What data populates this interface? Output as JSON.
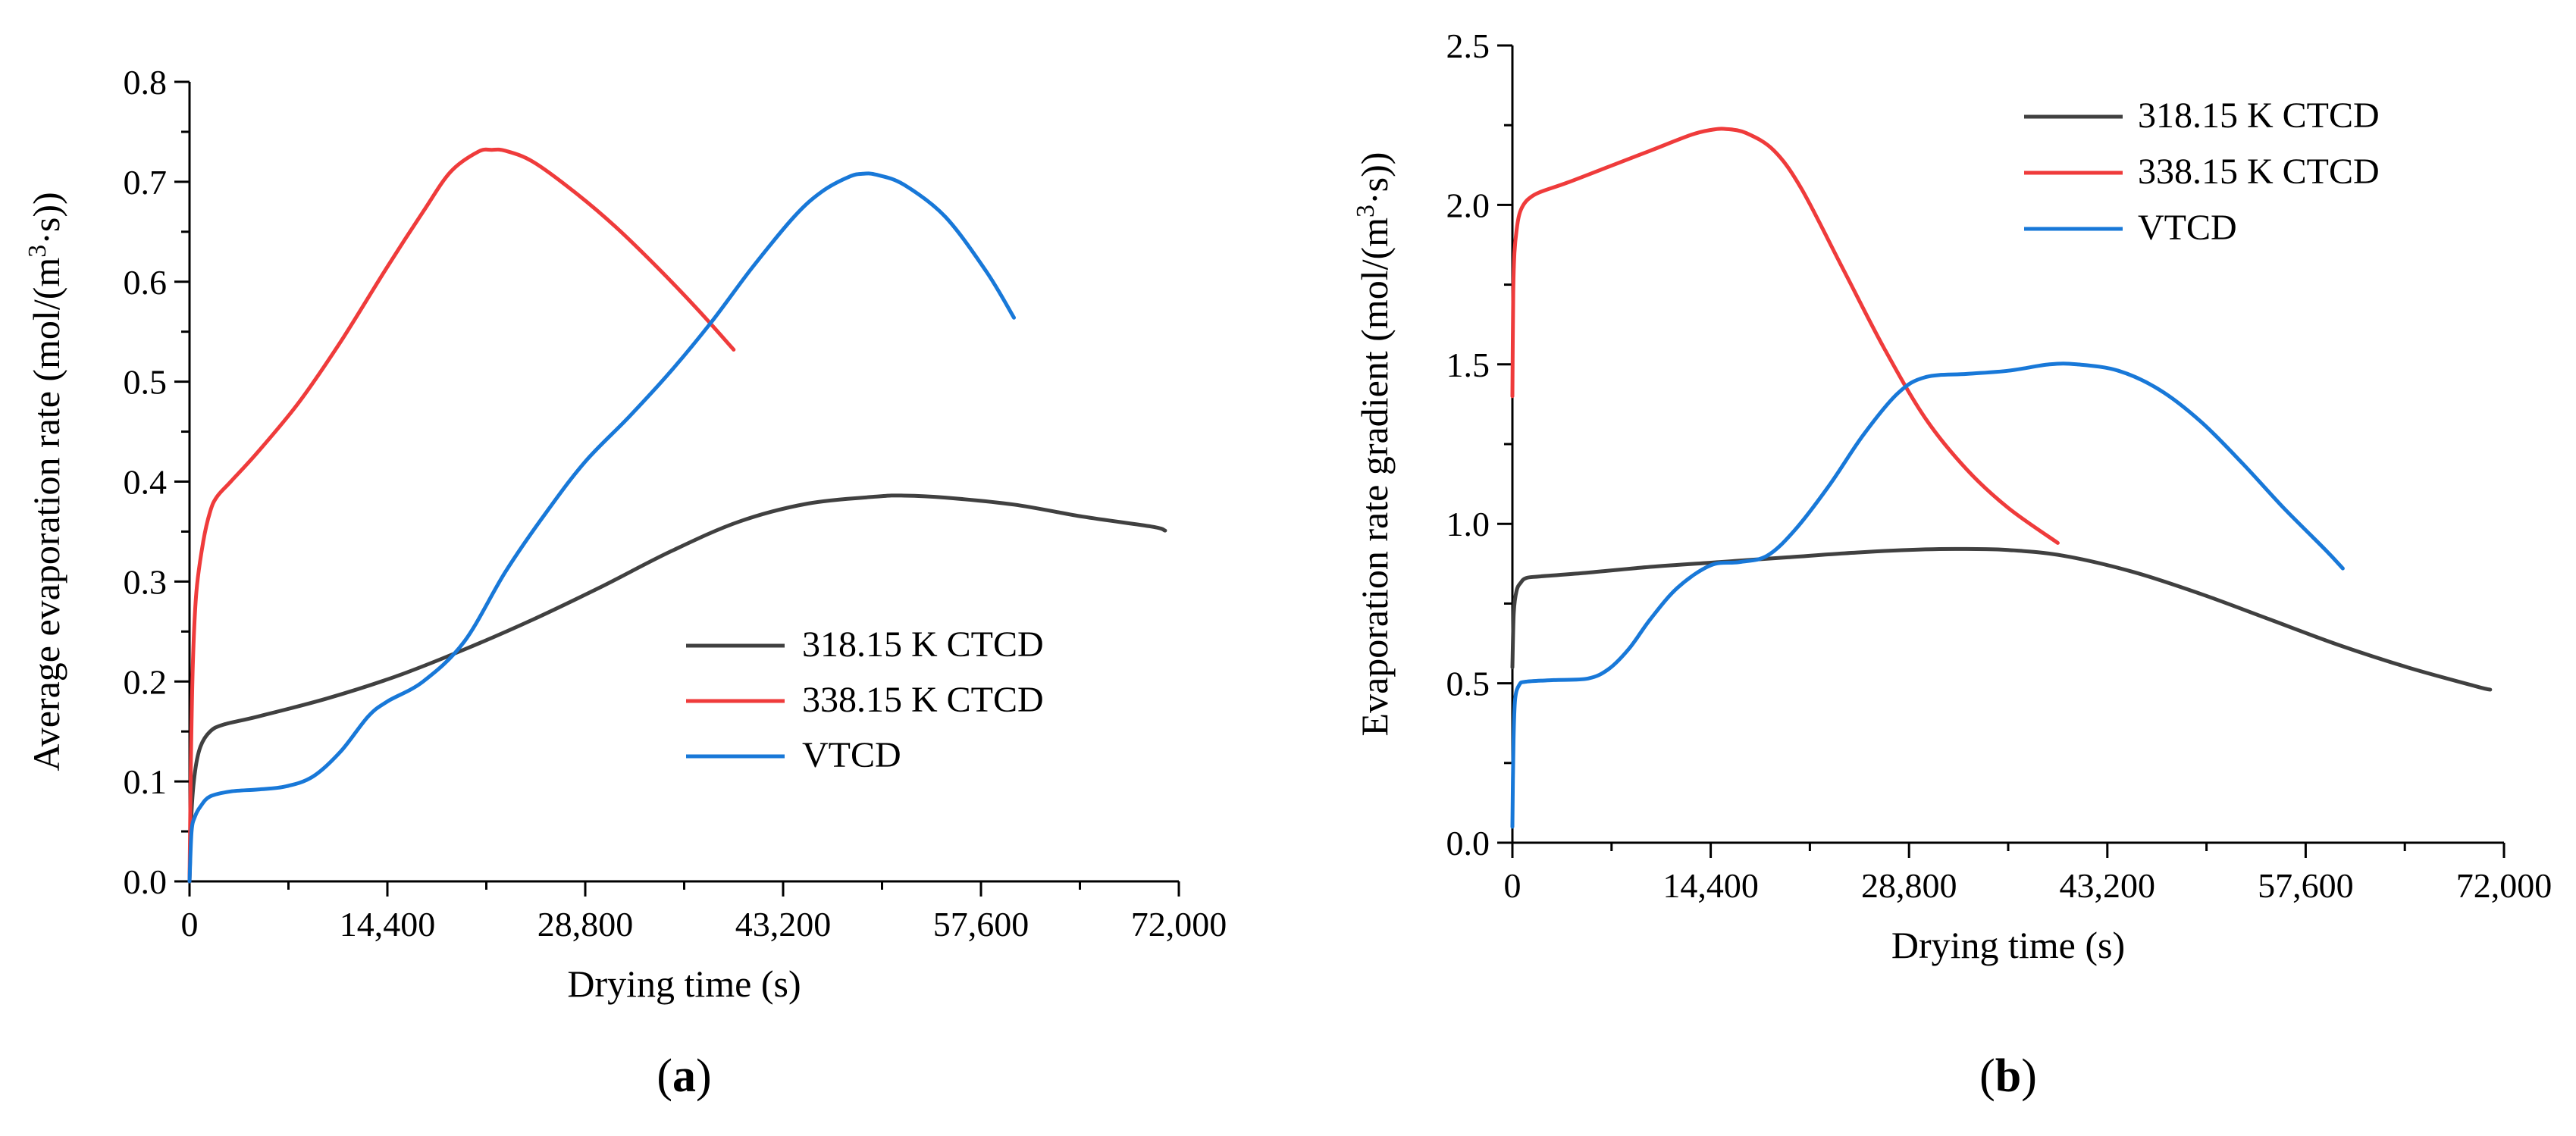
{
  "colors": {
    "series_318": "#404040",
    "series_338": "#ef3b3b",
    "series_vtcd": "#1878d8",
    "axis": "#000000",
    "background": "#ffffff"
  },
  "chart_data": [
    {
      "type": "line",
      "panel_label": "a",
      "title": "",
      "xlabel": "Drying time (s)",
      "ylabel_main": "Average evaporation rate (mol/(m",
      "ylabel_sup": "3",
      "ylabel_tail": "·s))",
      "xlim": [
        0,
        72000
      ],
      "ylim": [
        0,
        0.8
      ],
      "xticks": [
        0,
        14400,
        28800,
        43200,
        57600,
        72000
      ],
      "xtick_labels": [
        "0",
        "14,400",
        "28,800",
        "43,200",
        "57,600",
        "72,000"
      ],
      "yticks": [
        0.0,
        0.1,
        0.2,
        0.3,
        0.4,
        0.5,
        0.6,
        0.7,
        0.8
      ],
      "ytick_labels": [
        "0.0",
        "0.1",
        "0.2",
        "0.3",
        "0.4",
        "0.5",
        "0.6",
        "0.7",
        "0.8"
      ],
      "legend_position": "lower-right",
      "grid": false,
      "series": [
        {
          "name": "318.15 K CTCD",
          "color_key": "series_318",
          "x": [
            0,
            150,
            400,
            800,
            1500,
            2500,
            5000,
            10000,
            15000,
            20000,
            25000,
            30000,
            35000,
            40000,
            45000,
            50000,
            52000,
            55000,
            60000,
            65000,
            70000,
            71000
          ],
          "y": [
            0.0,
            0.07,
            0.11,
            0.135,
            0.15,
            0.157,
            0.165,
            0.183,
            0.205,
            0.232,
            0.262,
            0.295,
            0.33,
            0.36,
            0.378,
            0.385,
            0.386,
            0.384,
            0.377,
            0.365,
            0.355,
            0.351
          ]
        },
        {
          "name": "338.15 K CTCD",
          "color_key": "series_338",
          "x": [
            0,
            100,
            250,
            500,
            1000,
            1500,
            2000,
            3000,
            5000,
            8000,
            11000,
            14400,
            17000,
            19000,
            21000,
            22000,
            23000,
            25000,
            28000,
            31000,
            34000,
            37000,
            39600
          ],
          "y": [
            0.0,
            0.12,
            0.22,
            0.29,
            0.34,
            0.37,
            0.385,
            0.4,
            0.43,
            0.48,
            0.54,
            0.615,
            0.67,
            0.71,
            0.73,
            0.732,
            0.731,
            0.72,
            0.69,
            0.655,
            0.615,
            0.572,
            0.532
          ]
        },
        {
          "name": "VTCD",
          "color_key": "series_vtcd",
          "x": [
            0,
            150,
            400,
            800,
            1500,
            3000,
            5000,
            7000,
            9000,
            11000,
            13000,
            14400,
            17000,
            20000,
            23000,
            26000,
            28800,
            32000,
            35000,
            38000,
            41000,
            44000,
            46000,
            48000,
            49000,
            50000,
            52000,
            55000,
            58000,
            60000
          ],
          "y": [
            0.0,
            0.05,
            0.065,
            0.075,
            0.085,
            0.09,
            0.092,
            0.095,
            0.105,
            0.13,
            0.165,
            0.18,
            0.2,
            0.24,
            0.31,
            0.37,
            0.42,
            0.465,
            0.51,
            0.56,
            0.615,
            0.665,
            0.69,
            0.705,
            0.708,
            0.707,
            0.697,
            0.665,
            0.61,
            0.564
          ]
        }
      ]
    },
    {
      "type": "line",
      "panel_label": "b",
      "title": "",
      "xlabel": "Drying time (s)",
      "ylabel_main": "Evaporation rate gradient (mol/(m",
      "ylabel_sup": "3",
      "ylabel_tail": "·s))",
      "xlim": [
        0,
        72000
      ],
      "ylim": [
        0,
        2.5
      ],
      "xticks": [
        0,
        14400,
        28800,
        43200,
        57600,
        72000
      ],
      "xtick_labels": [
        "0",
        "14,400",
        "28,800",
        "43,200",
        "57,600",
        "72,000"
      ],
      "yticks": [
        0.0,
        0.5,
        1.0,
        1.5,
        2.0,
        2.5
      ],
      "ytick_labels": [
        "0.0",
        "0.5",
        "1.0",
        "1.5",
        "2.0",
        "2.5"
      ],
      "legend_position": "top-right",
      "grid": false,
      "series": [
        {
          "name": "318.15 K CTCD",
          "color_key": "series_318",
          "x": [
            0,
            100,
            300,
            600,
            1000,
            2000,
            5000,
            10000,
            15000,
            20000,
            25000,
            30000,
            33000,
            36000,
            40000,
            45000,
            50000,
            55000,
            60000,
            65000,
            70000,
            71000
          ],
          "y": [
            0.55,
            0.72,
            0.79,
            0.815,
            0.83,
            0.835,
            0.845,
            0.865,
            0.88,
            0.895,
            0.91,
            0.92,
            0.921,
            0.918,
            0.9,
            0.85,
            0.78,
            0.7,
            0.62,
            0.55,
            0.49,
            0.48
          ]
        },
        {
          "name": "338.15 K CTCD",
          "color_key": "series_338",
          "x": [
            0,
            60,
            150,
            300,
            500,
            800,
            1200,
            2000,
            4000,
            7000,
            10000,
            13000,
            14400,
            15500,
            17000,
            19000,
            21000,
            24000,
            27000,
            30000,
            33000,
            36000,
            39600
          ],
          "y": [
            1.4,
            1.72,
            1.85,
            1.92,
            1.97,
            2.0,
            2.02,
            2.04,
            2.07,
            2.12,
            2.17,
            2.22,
            2.235,
            2.238,
            2.225,
            2.17,
            2.05,
            1.8,
            1.55,
            1.33,
            1.17,
            1.05,
            0.94
          ]
        },
        {
          "name": "VTCD",
          "color_key": "series_vtcd",
          "x": [
            0,
            80,
            200,
            500,
            1000,
            3000,
            5500,
            7000,
            8500,
            10000,
            12000,
            14400,
            16500,
            18500,
            20500,
            23000,
            25500,
            28000,
            30000,
            33000,
            36000,
            39000,
            41000,
            44000,
            47000,
            50000,
            53000,
            56000,
            59000,
            60300
          ],
          "y": [
            0.05,
            0.32,
            0.45,
            0.495,
            0.505,
            0.51,
            0.515,
            0.545,
            0.61,
            0.7,
            0.8,
            0.87,
            0.88,
            0.9,
            0.98,
            1.12,
            1.28,
            1.41,
            1.46,
            1.47,
            1.48,
            1.5,
            1.5,
            1.48,
            1.42,
            1.32,
            1.19,
            1.05,
            0.92,
            0.86
          ]
        }
      ]
    }
  ]
}
